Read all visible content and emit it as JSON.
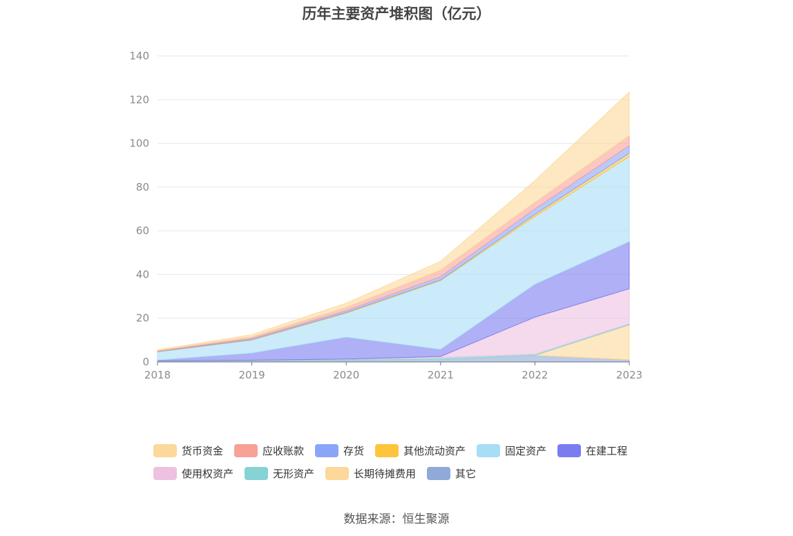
{
  "chart_data": {
    "type": "area",
    "stacked": true,
    "title": "历年主要资产堆积图（亿元）",
    "x": [
      "2018",
      "2019",
      "2020",
      "2021",
      "2022",
      "2023"
    ],
    "ylim": [
      0,
      140
    ],
    "yticks": [
      "0",
      "20",
      "40",
      "60",
      "80",
      "100",
      "120",
      "140"
    ],
    "grid": true,
    "legend_position": "bottom",
    "series": [
      {
        "name": "其它",
        "color": "#8fa9d9",
        "values": [
          0.3,
          0.5,
          0.8,
          1.2,
          3.0,
          1.0
        ]
      },
      {
        "name": "长期待摊费用",
        "color": "#fcd89a",
        "values": [
          0.0,
          0.0,
          0.0,
          0.0,
          0.0,
          16.0
        ]
      },
      {
        "name": "无形资产",
        "color": "#86d3d6",
        "values": [
          0.2,
          0.3,
          0.5,
          0.8,
          0.5,
          0.5
        ]
      },
      {
        "name": "使用权资产",
        "color": "#ecc2e0",
        "values": [
          0.0,
          0.0,
          0.0,
          0.5,
          17.0,
          16.0
        ]
      },
      {
        "name": "在建工程",
        "color": "#7b7cf0",
        "values": [
          0.3,
          3.2,
          10.0,
          3.2,
          15.0,
          21.5
        ]
      },
      {
        "name": "固定资产",
        "color": "#a8ddf7",
        "values": [
          3.8,
          6.0,
          11.0,
          31.5,
          31.0,
          39.0
        ]
      },
      {
        "name": "其他流动资产",
        "color": "#fdc43c",
        "values": [
          0.1,
          0.2,
          0.3,
          0.3,
          1.0,
          1.5
        ]
      },
      {
        "name": "存货",
        "color": "#8aa5f8",
        "values": [
          0.2,
          0.5,
          0.8,
          1.5,
          2.5,
          3.5
        ]
      },
      {
        "name": "应收账款",
        "color": "#f8a197",
        "values": [
          0.3,
          0.8,
          1.5,
          3.0,
          3.0,
          4.5
        ]
      },
      {
        "name": "货币资金",
        "color": "#fcd89a",
        "values": [
          0.3,
          1.0,
          2.0,
          4.0,
          10.0,
          20.0
        ]
      }
    ]
  },
  "legend": [
    {
      "name": "货币资金",
      "color": "#fcd89a"
    },
    {
      "name": "应收账款",
      "color": "#f8a197"
    },
    {
      "name": "存货",
      "color": "#8aa5f8"
    },
    {
      "name": "其他流动资产",
      "color": "#fdc43c"
    },
    {
      "name": "固定资产",
      "color": "#a8ddf7"
    },
    {
      "name": "在建工程",
      "color": "#7b7cf0"
    },
    {
      "name": "使用权资产",
      "color": "#ecc2e0"
    },
    {
      "name": "无形资产",
      "color": "#86d3d6"
    },
    {
      "name": "长期待摊费用",
      "color": "#fcd89a"
    },
    {
      "name": "其它",
      "color": "#8fa9d9"
    }
  ],
  "source": "数据来源：恒生聚源"
}
